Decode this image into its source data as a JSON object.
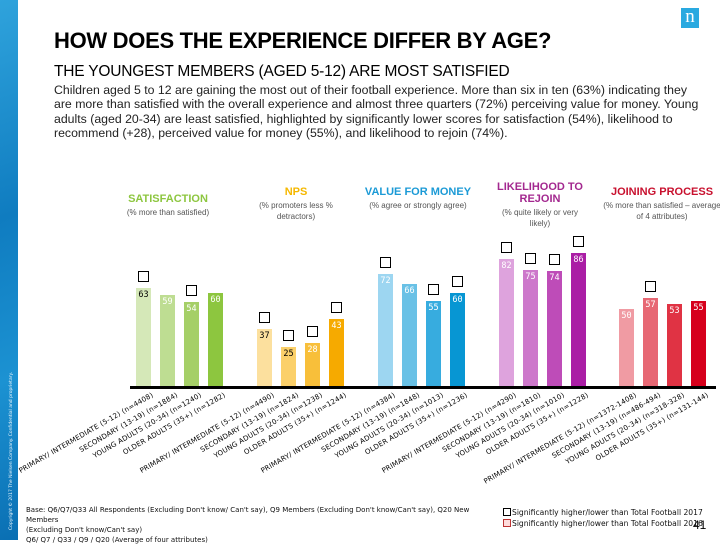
{
  "slide": {
    "title": "HOW DOES THE EXPERIENCE DIFFER BY AGE?",
    "subtitle": "THE YOUNGEST MEMBERS (AGED 5-12) ARE MOST SATISFIED",
    "body": "Children aged 5 to 12 are gaining the most out of their football experience. More than six in ten (63%) indicating they are more than satisfied with the overall experience and almost three quarters (72%) perceiving value for money. Young adults (aged 20-34) are least satisfied, highlighted by significantly lower scores for satisfaction (54%), likelihood to recommend (+28), perceived value for money (55%), and likelihood to rejoin (74%).",
    "logo_letter": "n",
    "copyright": "Copyright © 2017 The Nielsen Company. Confidential and proprietary.",
    "footnote_lines": [
      "Base: Q6/Q7/Q33 All Respondents (Excluding Don't know/ Can't say), Q9 Members (Excluding Don't know/Can't say), Q20 New Members",
      "(Excluding Don't know/Can't say)",
      "Q6/ Q7 / Q33 / Q9 / Q20 (Average of four attributes)"
    ],
    "legend": [
      {
        "label": "Significantly higher/lower than Total Football 2017",
        "marker": "black-square"
      },
      {
        "label": "Significantly higher/lower than Total Football 2016",
        "marker": "red-square"
      }
    ],
    "page_number": "41"
  },
  "chart_data": {
    "type": "bar",
    "title": "",
    "ylim": [
      0,
      100
    ],
    "grid": false,
    "groups": [
      {
        "name": "SATISFACTION",
        "subtitle": "(% more than satisfied)",
        "title_color": "#8dc63f",
        "colors": [
          "#d5e8b8",
          "#bedd92",
          "#a5cf67",
          "#8dc63f"
        ],
        "value_text_colors": [
          "#000000",
          "#ffffff",
          "#ffffff",
          "#ffffff"
        ],
        "values": [
          63,
          59,
          54,
          60
        ],
        "significance_marker": [
          true,
          false,
          true,
          false
        ],
        "labels": [
          "PRIMARY/ INTERMEDIATE (5-12) (n=4408)",
          "SECONDARY (13-19) (n=1884)",
          "YOUNG ADULTS (20-34) (n=1240)",
          "OLDER ADULTS (35+) (n=1282)"
        ]
      },
      {
        "name": "NPS",
        "subtitle": "(% promoters less % detractors)",
        "title_color": "#f5b800",
        "colors": [
          "#fce09e",
          "#fbd06a",
          "#f8bf3a",
          "#f6aa00"
        ],
        "value_text_colors": [
          "#000000",
          "#000000",
          "#ffffff",
          "#ffffff"
        ],
        "values": [
          37,
          25,
          28,
          43
        ],
        "significance_marker": [
          true,
          true,
          true,
          true
        ],
        "labels": [
          "PRIMARY/ INTERMEDIATE (5-12) (n=4490)",
          "SECONDARY (13-19) (n=1824)",
          "YOUNG ADULTS (20-34) (n=1238)",
          "OLDER ADULTS (35+) (n=1244)"
        ]
      },
      {
        "name": "VALUE FOR MONEY",
        "subtitle": "(% agree or strongly agree)",
        "title_color": "#1b9ad6",
        "colors": [
          "#9dd6f1",
          "#69c1e6",
          "#37acdf",
          "#0796d3"
        ],
        "value_text_colors": [
          "#ffffff",
          "#ffffff",
          "#ffffff",
          "#ffffff"
        ],
        "values": [
          72,
          66,
          55,
          60
        ],
        "significance_marker": [
          true,
          false,
          true,
          true
        ],
        "labels": [
          "PRIMARY/ INTERMEDIATE (5-12) (n=4384)",
          "SECONDARY (13-19) (n=1848)",
          "YOUNG ADULTS (20-34) (n=1013)",
          "OLDER ADULTS (35+) (n=1236)"
        ]
      },
      {
        "name": "LIKELIHOOD TO REJOIN",
        "subtitle": "(% quite likely or very likely)",
        "title_color": "#a3288f",
        "colors": [
          "#dea3dd",
          "#cd78cb",
          "#be4cb8",
          "#aa1ea5"
        ],
        "value_text_colors": [
          "#ffffff",
          "#ffffff",
          "#ffffff",
          "#ffffff"
        ],
        "values": [
          82,
          75,
          74,
          86
        ],
        "significance_marker": [
          true,
          true,
          true,
          true
        ],
        "labels": [
          "PRIMARY/ INTERMEDIATE (5-12) (n=4290)",
          "SECONDARY (13-19) (n=1810)",
          "YOUNG ADULTS (20-34) (n=1010)",
          "OLDER ADULTS (35+) (n=1228)"
        ]
      },
      {
        "name": "JOINING PROCESS",
        "subtitle": "(% more than satisfied – average of 4 attributes)",
        "title_color": "#c8102e",
        "colors": [
          "#f09ba3",
          "#e76874",
          "#e03344",
          "#d6001c"
        ],
        "value_text_colors": [
          "#ffffff",
          "#ffffff",
          "#ffffff",
          "#ffffff"
        ],
        "values": [
          50,
          57,
          53,
          55
        ],
        "significance_marker": [
          false,
          true,
          false,
          false
        ],
        "labels": [
          "PRIMARY/ INTERMEDIATE (5-12) (n=1372-1408)",
          "SECONDARY (13-19) (n=486-494)",
          "YOUNG ADULTS (20-34) (n=318-328)",
          "OLDER ADULTS (35+) (n=131-144)"
        ]
      }
    ]
  }
}
